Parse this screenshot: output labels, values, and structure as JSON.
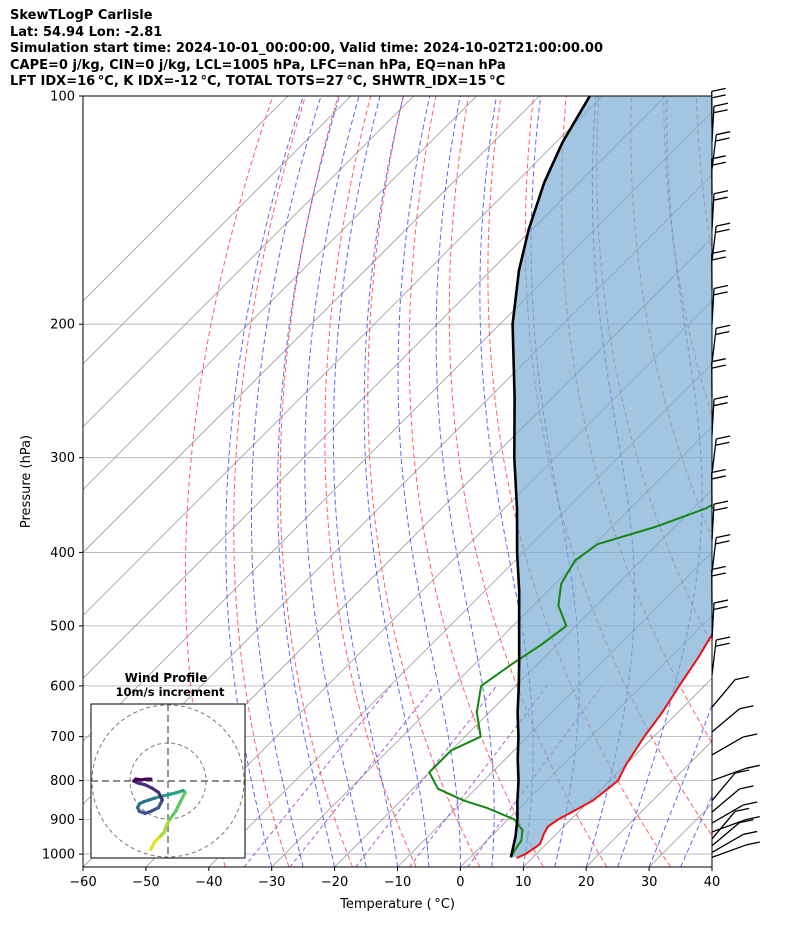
{
  "title_lines": [
    "SkewTLogP Carlisle",
    "Lat: 54.94   Lon: -2.81",
    "Simulation start time: 2024-10-01_00:00:00, Valid time: 2024-10-02T21:00:00.00",
    "CAPE=0 j/kg, CIN=0 j/kg, LCL=1005 hPa, LFC=nan hPa, EQ=nan hPa",
    "LFT IDX=16$^\\circ$C, K IDX=-12$^\\circ$C, TOTAL TOTS=27$^\\circ$C, SHWTR_IDX=15$^\\circ$C"
  ],
  "title_display": [
    "SkewTLogP Carlisle",
    "Lat: 54.94   Lon: -2.81",
    "Simulation start time: 2024-10-01_00:00:00, Valid time: 2024-10-02T21:00:00.00",
    "CAPE=0 j/kg, CIN=0 j/kg, LCL=1005 hPa, LFC=nan hPa, EQ=nan hPa",
    "LFT IDX=16 °C, K IDX=-12 °C, TOTAL TOTS=27 °C, SHWTR_IDX=15 °C"
  ],
  "colors": {
    "temperature": "#ee1111",
    "dewpoint": "#118811",
    "parcel": "#000000",
    "cape_fill": "#7badd4",
    "dry_adiabat": "#ff4444",
    "moist_adiabat": "#3344ee",
    "mixing_ratio": "#aa44cc",
    "isotherm": "#999999"
  },
  "chart_data": {
    "type": "skewt",
    "xlabel": "Temperature ( °C)",
    "ylabel": "Pressure (hPa)",
    "xlim": [
      -60,
      40
    ],
    "ylim": [
      1040,
      100
    ],
    "y_scale": "log",
    "grid": true,
    "xticks": [
      -60,
      -50,
      -40,
      -30,
      -20,
      -10,
      0,
      10,
      20,
      30,
      40
    ],
    "yticks": [
      1000,
      900,
      800,
      700,
      600,
      500,
      400,
      300,
      200,
      100
    ],
    "temperature": {
      "p": [
        1012,
        1000,
        970,
        940,
        920,
        900,
        880,
        850,
        820,
        800,
        760,
        700,
        650,
        600,
        550,
        500,
        460,
        430,
        400,
        370,
        340,
        310,
        290,
        270,
        250,
        235,
        220,
        205,
        190,
        180,
        170,
        160,
        150,
        140,
        130,
        120,
        110,
        100
      ],
      "t": [
        7.5,
        8.3,
        9.0,
        8.0,
        7.5,
        8.0,
        9.0,
        10.5,
        11.0,
        11.3,
        10.0,
        8.5,
        7.5,
        6.0,
        4.5,
        2.5,
        0.0,
        -3.0,
        -6.5,
        -9.5,
        -12.5,
        -14.0,
        -14.5,
        -15.0,
        -15.5,
        -16.0,
        -15.5,
        -14.0,
        -11.0,
        -9.0,
        -7.0,
        -5.5,
        -4.0,
        -2.0,
        0.0,
        0.7,
        1.5,
        3.0
      ]
    },
    "dewpoint": {
      "p": [
        1010,
        990,
        960,
        930,
        900,
        870,
        850,
        820,
        780,
        730,
        700,
        650,
        600,
        560,
        530,
        500,
        470,
        440,
        410,
        390,
        370,
        350,
        330,
        310,
        290,
        270,
        250,
        235,
        220,
        200,
        180,
        170,
        160,
        150,
        140,
        130,
        120,
        110,
        100
      ],
      "td": [
        6.5,
        6.0,
        5.5,
        4.0,
        1.0,
        -5.0,
        -10.0,
        -16.0,
        -20.0,
        -20.0,
        -17.5,
        -22.0,
        -25.5,
        -24.0,
        -22.5,
        -21.5,
        -26.0,
        -29.0,
        -30.5,
        -29.5,
        -23.0,
        -18.0,
        -15.5,
        -17.5,
        -21.0,
        -24.0,
        -26.0,
        -28.0,
        -28.5,
        -28.0,
        -27.0,
        -28.0,
        -31.0,
        -36.0,
        -37.0,
        -33.0,
        -30.0,
        -28.0,
        -26.0
      ]
    },
    "parcel": {
      "p": [
        1010,
        950,
        900,
        850,
        800,
        750,
        700,
        650,
        600,
        550,
        500,
        450,
        400,
        350,
        300,
        250,
        200,
        170,
        150,
        130,
        115,
        100
      ],
      "t": [
        6.5,
        4.0,
        1.5,
        -1.5,
        -4.5,
        -8.0,
        -11.5,
        -15.5,
        -19.5,
        -24.0,
        -29.0,
        -34.5,
        -41.0,
        -48.0,
        -56.5,
        -66.0,
        -78.0,
        -85.5,
        -90.5,
        -95.5,
        -99.0,
        -102.0
      ]
    },
    "wind_barb_pressures": [
      1010,
      995,
      975,
      955,
      935,
      910,
      880,
      850,
      800,
      740,
      690,
      640,
      580,
      520,
      470,
      425,
      385,
      350,
      315,
      280,
      250,
      225,
      200,
      180,
      165,
      150,
      135,
      125,
      115,
      110
    ],
    "hodograph": {
      "title": "Wind Profile",
      "subtitle": "10m/s increment",
      "u": [
        -4.5,
        -4.0,
        -3.5,
        -3.0,
        -2.5,
        -2.0,
        -1.5,
        -1.0,
        -0.5,
        0.5,
        2.0,
        3.0,
        4.0,
        4.5,
        4.0,
        2.5,
        0.5,
        -1.5,
        -3.5,
        -5.0,
        -6.5,
        -7.5,
        -8.0,
        -7.5,
        -6.0,
        -4.5,
        -2.5,
        -1.5,
        -2.5,
        -4.0,
        -6.0,
        -8.0,
        -9.0,
        -8.5,
        -7.0,
        -5.5,
        -4.5
      ],
      "v": [
        -18.0,
        -17.0,
        -16.0,
        -15.5,
        -15.0,
        -14.5,
        -14.0,
        -13.5,
        -12.0,
        -10.0,
        -8.0,
        -6.0,
        -4.0,
        -3.0,
        -2.5,
        -3.0,
        -3.5,
        -4.0,
        -4.5,
        -5.0,
        -5.5,
        -6.0,
        -7.0,
        -8.0,
        -8.5,
        -8.0,
        -7.0,
        -5.0,
        -3.0,
        -2.0,
        -1.0,
        -0.5,
        0.0,
        0.5,
        0.3,
        0.5,
        0.5
      ]
    }
  }
}
